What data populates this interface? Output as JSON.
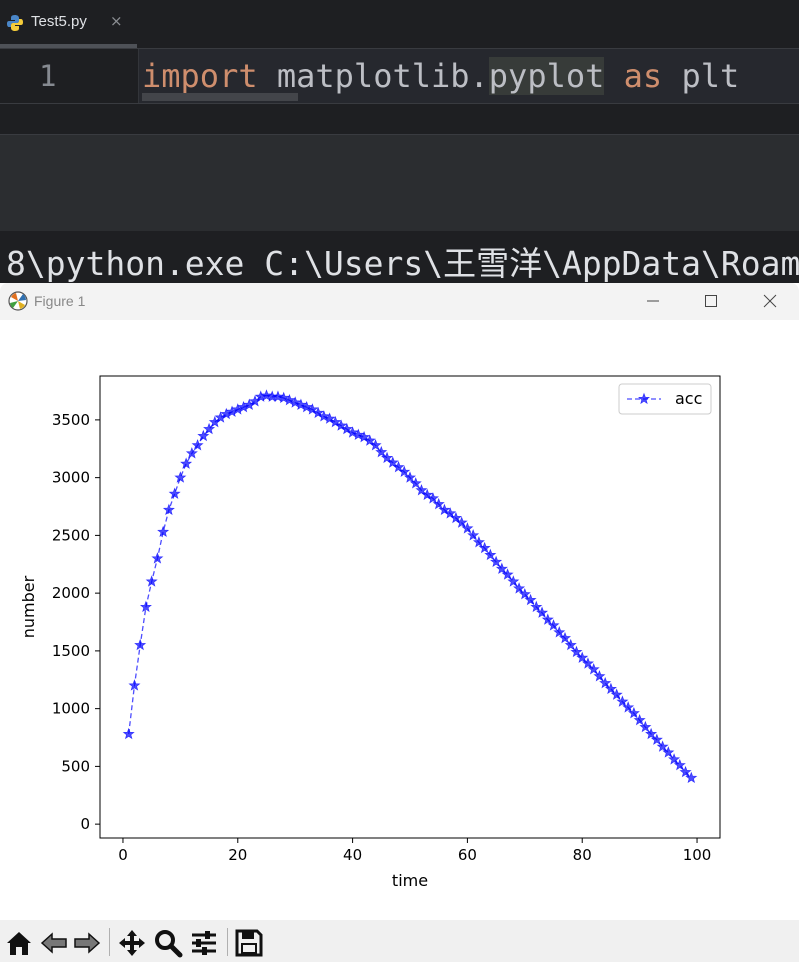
{
  "ide": {
    "tab": {
      "filename": "Test5.py",
      "close_glyph": "×"
    },
    "editor": {
      "line_number": "1",
      "code": {
        "kw1": "import",
        "module_a": " matplotlib.",
        "module_b": "pyplot",
        "kw2": "as",
        "alias": "plt"
      }
    },
    "console": {
      "command": "8\\python.exe C:\\Users\\王雪洋\\AppData\\Roam"
    }
  },
  "window": {
    "title": "Figure 1",
    "controls": {
      "minimize": "minimize-icon",
      "maximize": "maximize-icon",
      "close": "close-icon"
    }
  },
  "toolbar": {
    "buttons": [
      "home-icon",
      "back-icon",
      "forward-icon",
      "pan-icon",
      "zoom-icon",
      "configure-subplots-icon",
      "save-icon"
    ]
  },
  "colors": {
    "series": "#0000ff",
    "ide_bg": "#1e1f22",
    "keyword": "#cf8e6d"
  },
  "chart_data": {
    "type": "line",
    "xlabel": "time",
    "ylabel": "number",
    "xlim": [
      -4,
      104
    ],
    "ylim": [
      -120,
      3880
    ],
    "xticks": [
      0,
      20,
      40,
      60,
      80,
      100
    ],
    "yticks": [
      0,
      500,
      1000,
      1500,
      2000,
      2500,
      3000,
      3500
    ],
    "legend": {
      "position": "top-right"
    },
    "series": [
      {
        "name": "acc",
        "style": "dashed line with star markers",
        "x": [
          1,
          2,
          3,
          4,
          5,
          6,
          7,
          8,
          9,
          10,
          11,
          12,
          13,
          14,
          15,
          16,
          17,
          18,
          19,
          20,
          21,
          22,
          23,
          24,
          25,
          26,
          27,
          28,
          29,
          30,
          31,
          32,
          33,
          34,
          35,
          36,
          37,
          38,
          39,
          40,
          41,
          42,
          43,
          44,
          45,
          46,
          47,
          48,
          49,
          50,
          51,
          52,
          53,
          54,
          55,
          56,
          57,
          58,
          59,
          60,
          61,
          62,
          63,
          64,
          65,
          66,
          67,
          68,
          69,
          70,
          71,
          72,
          73,
          74,
          75,
          76,
          77,
          78,
          79,
          80,
          81,
          82,
          83,
          84,
          85,
          86,
          87,
          88,
          89,
          90,
          91,
          92,
          93,
          94,
          95,
          96,
          97,
          98,
          99
        ],
        "y": [
          780,
          1200,
          1550,
          1880,
          2100,
          2300,
          2530,
          2720,
          2860,
          3000,
          3120,
          3210,
          3280,
          3360,
          3420,
          3480,
          3520,
          3550,
          3570,
          3590,
          3610,
          3630,
          3660,
          3700,
          3710,
          3700,
          3700,
          3690,
          3670,
          3650,
          3630,
          3610,
          3590,
          3560,
          3530,
          3510,
          3480,
          3450,
          3420,
          3390,
          3370,
          3350,
          3320,
          3280,
          3220,
          3170,
          3130,
          3090,
          3050,
          3000,
          2950,
          2890,
          2850,
          2820,
          2770,
          2720,
          2690,
          2650,
          2610,
          2560,
          2500,
          2440,
          2390,
          2330,
          2270,
          2210,
          2160,
          2100,
          2040,
          1990,
          1940,
          1880,
          1830,
          1770,
          1720,
          1660,
          1610,
          1550,
          1490,
          1440,
          1390,
          1340,
          1280,
          1220,
          1170,
          1120,
          1060,
          1010,
          960,
          900,
          840,
          780,
          730,
          670,
          620,
          560,
          510,
          450,
          400
        ]
      }
    ]
  }
}
